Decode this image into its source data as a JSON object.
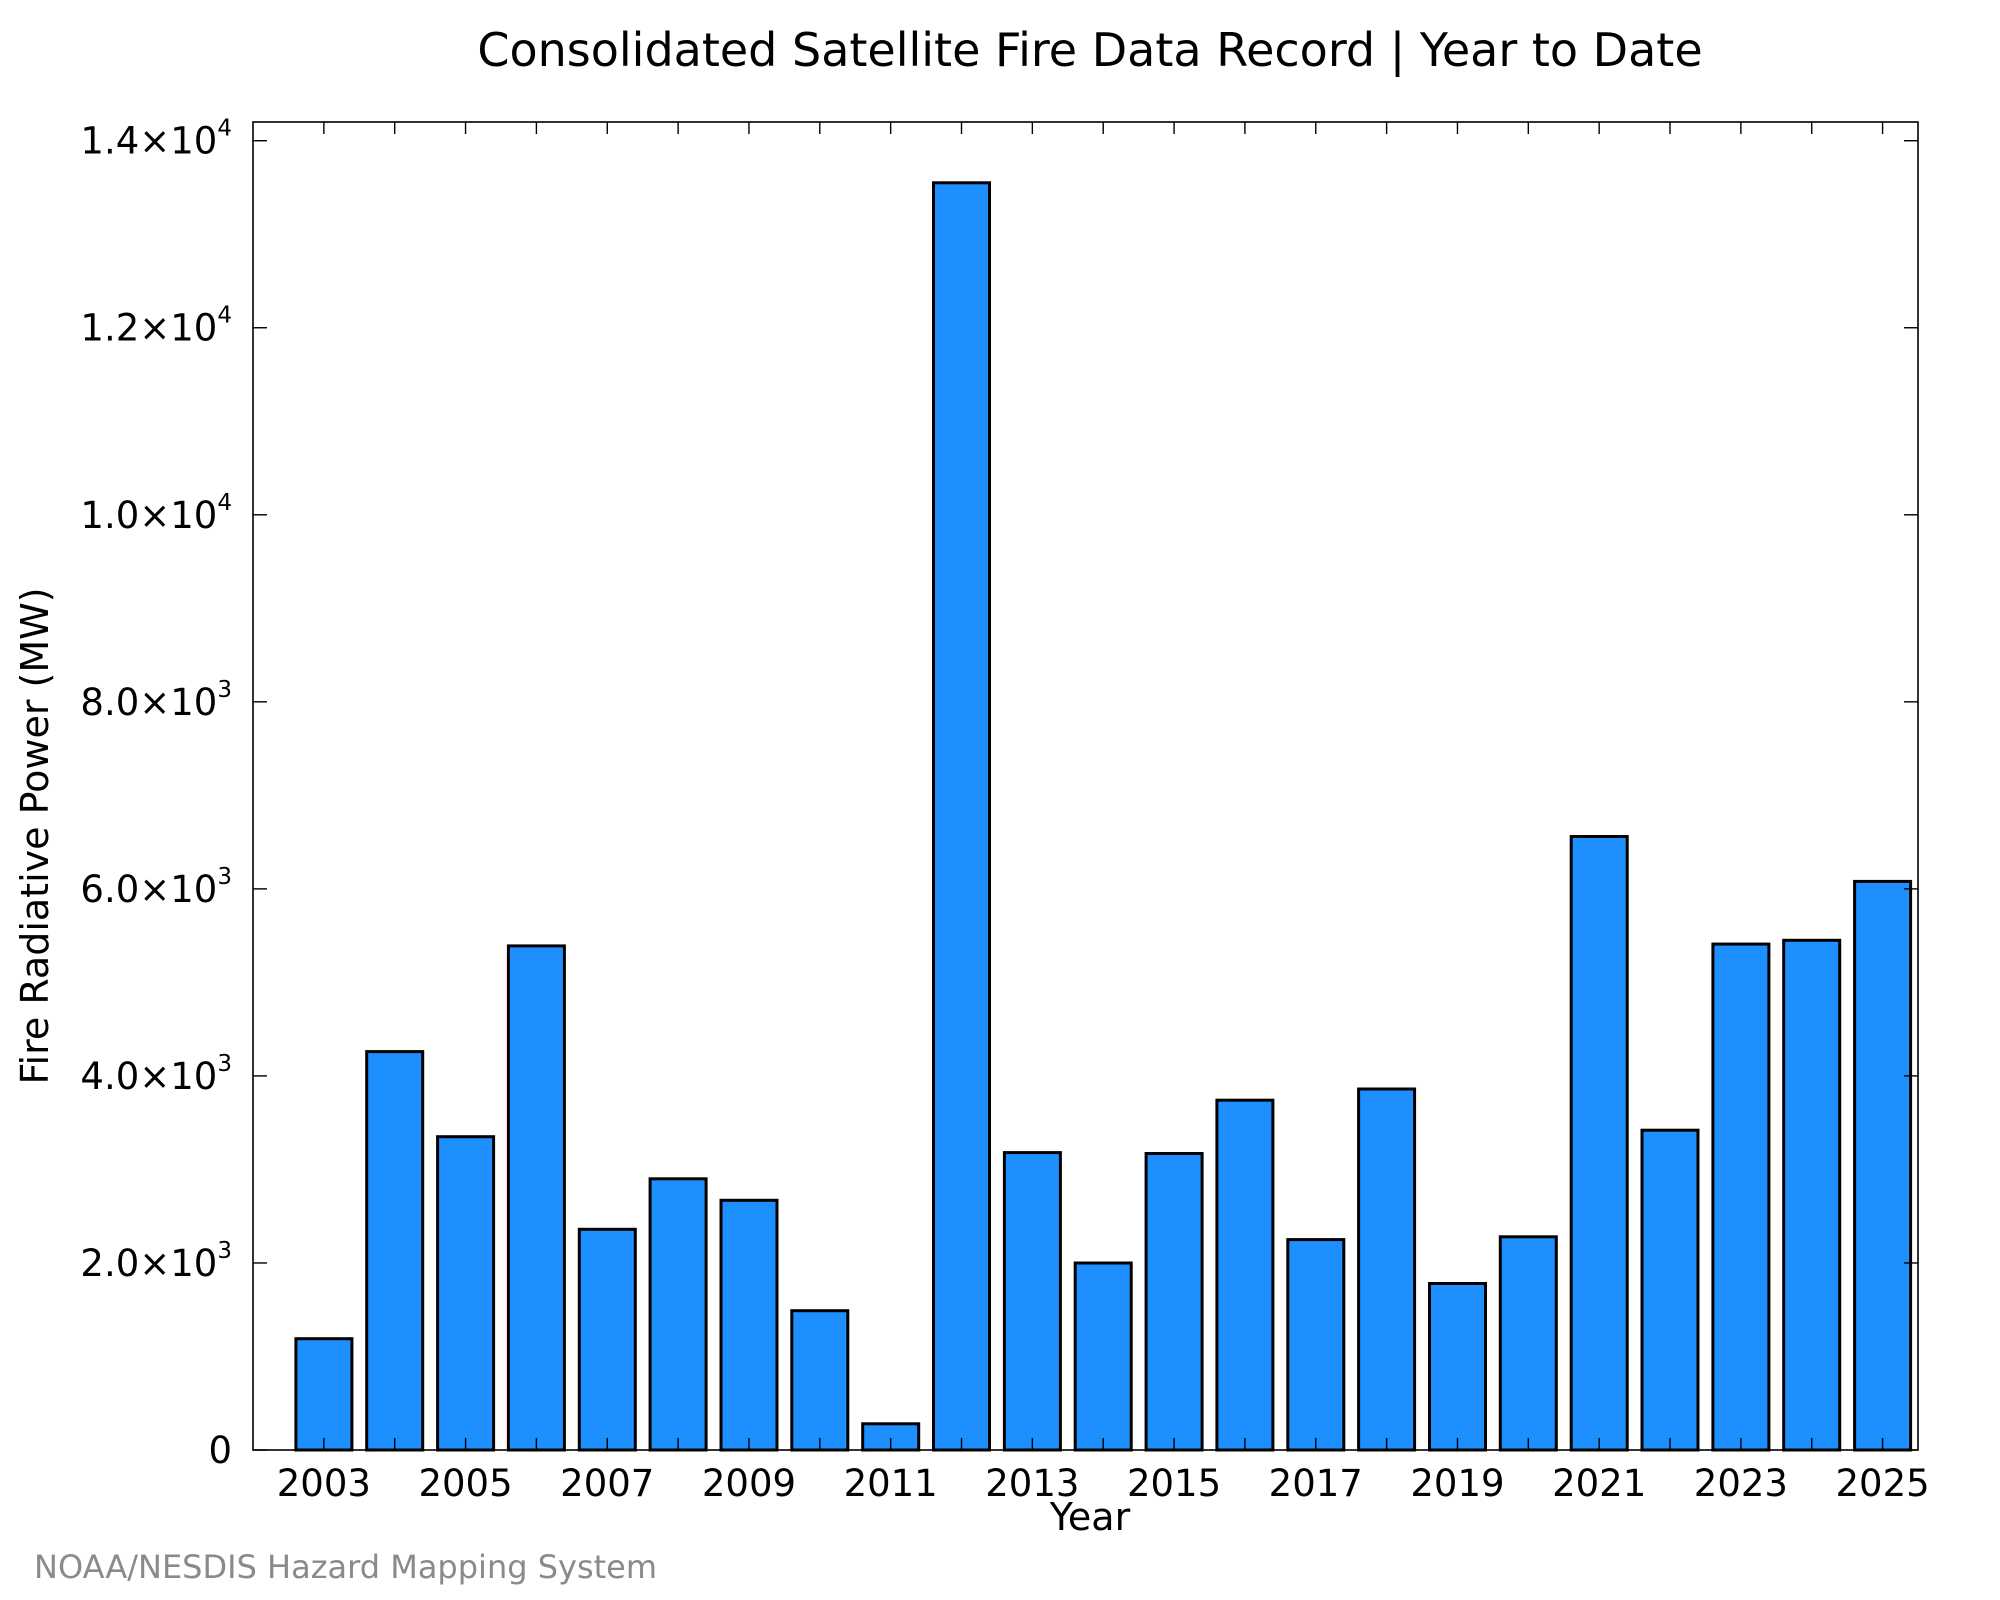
{
  "chart_data": {
    "type": "bar",
    "title": "Consolidated Satellite Fire Data Record | Year to Date",
    "xlabel": "Year",
    "ylabel": "Fire Radiative Power (MW)",
    "categories": [
      "2003",
      "2004",
      "2005",
      "2006",
      "2007",
      "2008",
      "2009",
      "2010",
      "2011",
      "2012",
      "2013",
      "2014",
      "2015",
      "2016",
      "2017",
      "2018",
      "2019",
      "2020",
      "2021",
      "2022",
      "2023",
      "2024",
      "2025"
    ],
    "values": [
      1190,
      4260,
      3350,
      5390,
      2360,
      2900,
      2670,
      1490,
      280,
      13550,
      3180,
      2000,
      3170,
      3740,
      2250,
      3860,
      1780,
      2280,
      6560,
      3420,
      5410,
      5450,
      6080
    ],
    "ylim": [
      0,
      14200
    ],
    "yticks": [
      {
        "value": 0,
        "mantissa": "0",
        "exponent": ""
      },
      {
        "value": 2000,
        "mantissa": "2.0×10",
        "exponent": "3"
      },
      {
        "value": 4000,
        "mantissa": "4.0×10",
        "exponent": "3"
      },
      {
        "value": 6000,
        "mantissa": "6.0×10",
        "exponent": "3"
      },
      {
        "value": 8000,
        "mantissa": "8.0×10",
        "exponent": "3"
      },
      {
        "value": 10000,
        "mantissa": "1.0×10",
        "exponent": "4"
      },
      {
        "value": 12000,
        "mantissa": "1.2×10",
        "exponent": "4"
      },
      {
        "value": 14000,
        "mantissa": "1.4×10",
        "exponent": "4"
      }
    ],
    "xtick_labels": [
      "2003",
      "2005",
      "2007",
      "2009",
      "2011",
      "2013",
      "2015",
      "2017",
      "2019",
      "2021",
      "2023",
      "2025"
    ],
    "grid": false,
    "legend": "none",
    "colors": {
      "bar_fill": "#1e8fff",
      "bar_edge": "#000000",
      "axis": "#000000"
    }
  },
  "credit": "NOAA/NESDIS Hazard Mapping System"
}
